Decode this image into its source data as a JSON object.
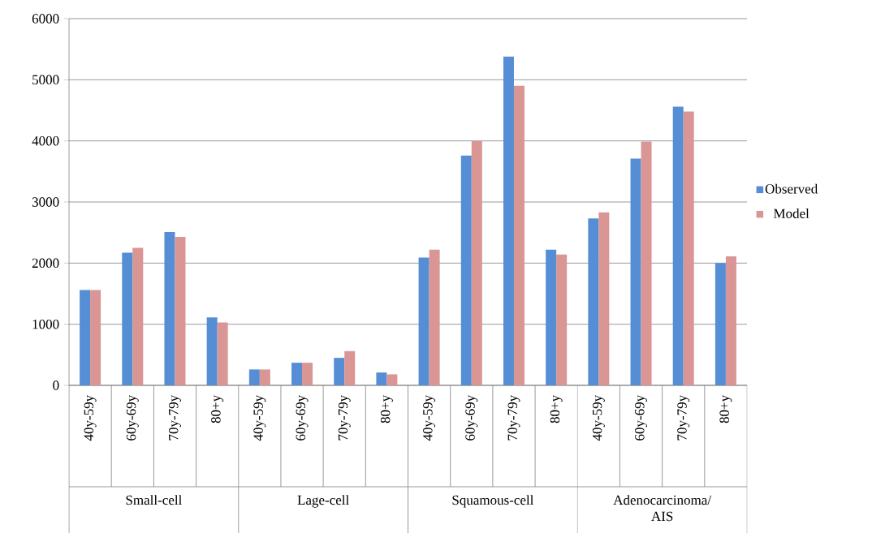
{
  "chart_data": {
    "type": "bar",
    "categories": [
      "40y-59y",
      "60y-69y",
      "70y-79y",
      "80+y",
      "40y-59y",
      "60y-69y",
      "70y-79y",
      "80+y",
      "40y-59y",
      "60y-69y",
      "70y-79y",
      "80+y",
      "40y-59y",
      "60y-69y",
      "70y-79y",
      "80+y"
    ],
    "annotations": [
      "Small-cell",
      "Lage-cell",
      "Squamous-cell",
      "Adenocarcinoma/ AIS"
    ],
    "series": [
      {
        "name": "Observed",
        "color": "#558ed5",
        "values": [
          1560,
          2170,
          2510,
          1110,
          260,
          370,
          450,
          210,
          2090,
          3760,
          5380,
          2220,
          2730,
          3710,
          4560,
          2000
        ]
      },
      {
        "name": "Model",
        "color": "#d99694",
        "values": [
          1560,
          2250,
          2430,
          1030,
          260,
          370,
          560,
          180,
          2220,
          4000,
          4900,
          2140,
          2830,
          3990,
          4480,
          2110
        ]
      }
    ],
    "ylim": [
      0,
      6000
    ],
    "yticks": [
      0,
      1000,
      2000,
      3000,
      4000,
      5000,
      6000
    ],
    "grid": "y",
    "legend": "right"
  }
}
